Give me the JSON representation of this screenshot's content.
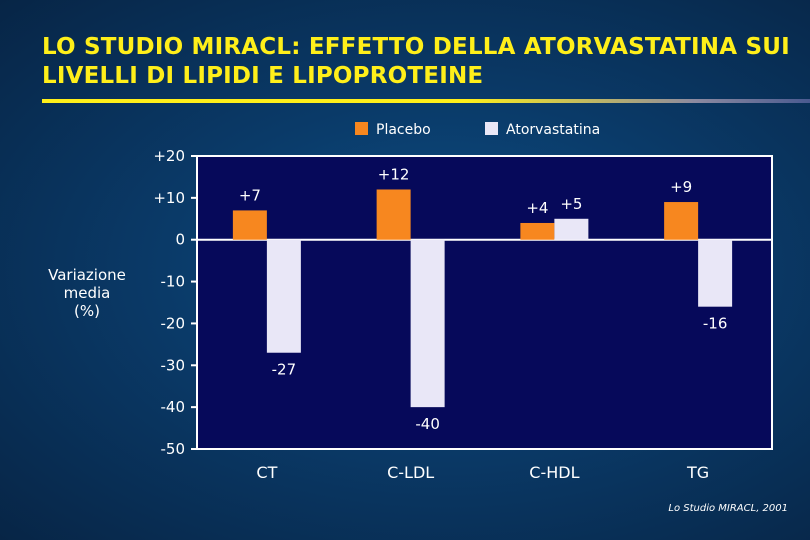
{
  "title": "LO STUDIO MIRACL: EFFETTO DELLA ATORVASTATINA SUI LIVELLI DI LIPIDI E LIPOPROTEINE",
  "source": "Lo Studio MIRACL, 2001",
  "chart_data": {
    "type": "bar",
    "title": "",
    "ylabel": "Variazione media (%)",
    "xlabel": "",
    "ylim": [
      -50,
      20
    ],
    "yticks": [
      "+20",
      "+10",
      "0",
      "-10",
      "-20",
      "-30",
      "-40",
      "-50"
    ],
    "yticks_values": [
      20,
      10,
      0,
      -10,
      -20,
      -30,
      -40,
      -50
    ],
    "grid": false,
    "legend": "top",
    "categories": [
      "CT",
      "C-LDL",
      "C-HDL",
      "TG"
    ],
    "series": [
      {
        "name": "Placebo",
        "color": "#f7871f",
        "values": [
          7,
          12,
          4,
          9
        ],
        "labels": [
          "+7",
          "+12",
          "+4",
          "+9"
        ]
      },
      {
        "name": "Atorvastatina",
        "color": "#e9e7f7",
        "values": [
          -27,
          -40,
          5,
          -16
        ],
        "labels": [
          "-27",
          "-40",
          "+5",
          "-16"
        ]
      }
    ],
    "plot_background": "#06095a"
  }
}
